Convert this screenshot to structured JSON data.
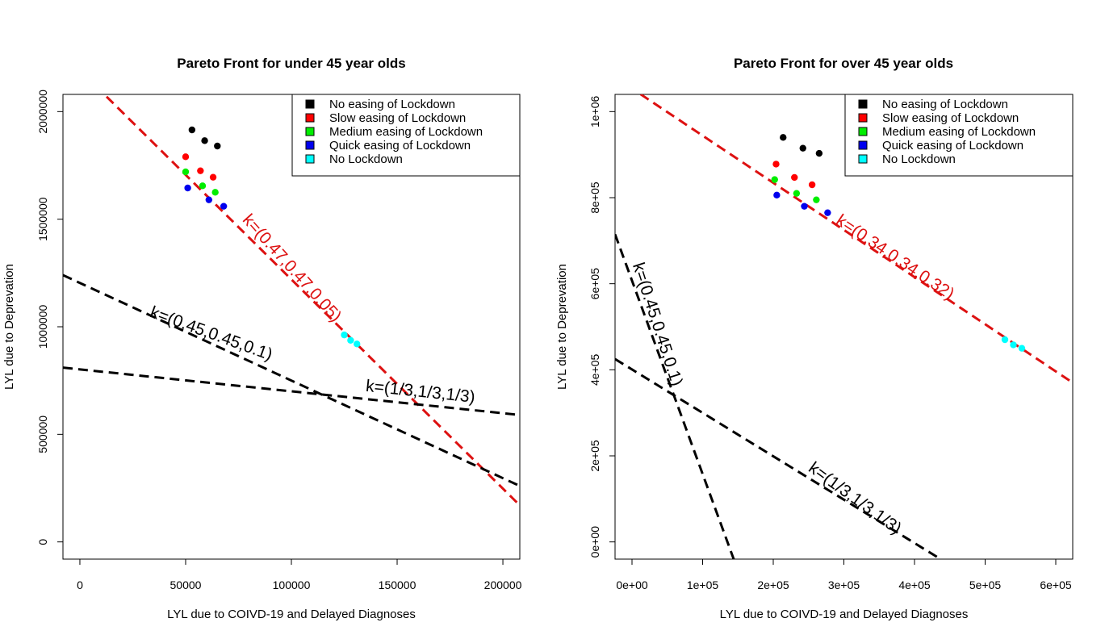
{
  "chart_data": [
    {
      "type": "scatter",
      "title": "Pareto Front for under 45 year olds",
      "xlabel": "LYL due to COIVD-19 and Delayed Diagnoses",
      "ylabel": "LYL due to Deprevation",
      "xlim": [
        -8000,
        208000
      ],
      "ylim": [
        -80000,
        2080000
      ],
      "xticks": [
        {
          "value": 0,
          "label": "0"
        },
        {
          "value": 50000,
          "label": "50000"
        },
        {
          "value": 100000,
          "label": "100000"
        },
        {
          "value": 150000,
          "label": "150000"
        },
        {
          "value": 200000,
          "label": "200000"
        }
      ],
      "yticks": [
        {
          "value": 0,
          "label": "0"
        },
        {
          "value": 500000,
          "label": "500000"
        },
        {
          "value": 1000000,
          "label": "1000000"
        },
        {
          "value": 1500000,
          "label": "1500000"
        },
        {
          "value": 2000000,
          "label": "2000000"
        }
      ],
      "series": [
        {
          "name": "No easing of Lockdown",
          "color": "#000000",
          "points": [
            [
              53000,
              1915000
            ],
            [
              59000,
              1865000
            ],
            [
              65000,
              1840000
            ]
          ]
        },
        {
          "name": "Slow easing of Lockdown",
          "color": "#ff0000",
          "points": [
            [
              50000,
              1790000
            ],
            [
              57000,
              1725000
            ],
            [
              63000,
              1695000
            ]
          ]
        },
        {
          "name": "Medium easing of Lockdown",
          "color": "#00ee00",
          "points": [
            [
              50000,
              1720000
            ],
            [
              58000,
              1655000
            ],
            [
              64000,
              1625000
            ]
          ]
        },
        {
          "name": "Quick easing of Lockdown",
          "color": "#0000ee",
          "points": [
            [
              51000,
              1645000
            ],
            [
              61000,
              1590000
            ],
            [
              68000,
              1560000
            ]
          ]
        },
        {
          "name": "No Lockdown",
          "color": "#00ffff",
          "points": [
            [
              125000,
              962000
            ],
            [
              128000,
              937000
            ],
            [
              131000,
              920000
            ]
          ]
        }
      ],
      "lines": [
        {
          "name": "red",
          "color": "#dd1111",
          "from": [
            -8000,
            2270000
          ],
          "to": [
            208000,
            170000
          ]
        },
        {
          "name": "k045",
          "color": "#000000",
          "from": [
            -8000,
            1240000
          ],
          "to": [
            208000,
            260000
          ]
        },
        {
          "name": "k13",
          "color": "#000000",
          "from": [
            -8000,
            810000
          ],
          "to": [
            208000,
            590000
          ]
        }
      ],
      "annotations": [
        {
          "text": "k=(0.47,0.47,0.05)",
          "color": "#dd1111",
          "at": [
            100000,
            1270000
          ],
          "angle": 48
        },
        {
          "text": "k=(0.45,0.45,0.1)",
          "color": "#000000",
          "at": [
            62000,
            965000
          ],
          "angle": 20
        },
        {
          "text": "k=(1/3,1/3,1/3)",
          "color": "#000000",
          "at": [
            161000,
            695000
          ],
          "angle": 6
        }
      ],
      "legend_position": "top-right"
    },
    {
      "type": "scatter",
      "title": "Pareto Front for over 45 year olds",
      "xlabel": "LYL due to COIVD-19 and Delayed Diagnoses",
      "ylabel": "LYL due to Deprevation",
      "xlim": [
        -24000,
        624000
      ],
      "ylim": [
        -40000,
        1040000
      ],
      "xticks": [
        {
          "value": 0,
          "label": "0e+00"
        },
        {
          "value": 100000,
          "label": "1e+05"
        },
        {
          "value": 200000,
          "label": "2e+05"
        },
        {
          "value": 300000,
          "label": "3e+05"
        },
        {
          "value": 400000,
          "label": "4e+05"
        },
        {
          "value": 500000,
          "label": "5e+05"
        },
        {
          "value": 600000,
          "label": "6e+05"
        }
      ],
      "yticks": [
        {
          "value": 0,
          "label": "0e+00"
        },
        {
          "value": 200000,
          "label": "2e+05"
        },
        {
          "value": 400000,
          "label": "4e+05"
        },
        {
          "value": 600000,
          "label": "6e+05"
        },
        {
          "value": 800000,
          "label": "8e+05"
        },
        {
          "value": 1000000,
          "label": "1e+06"
        }
      ],
      "series": [
        {
          "name": "No easing of Lockdown",
          "color": "#000000",
          "points": [
            [
              214000,
              940000
            ],
            [
              242000,
              915000
            ],
            [
              265000,
              903000
            ]
          ]
        },
        {
          "name": "Slow easing of Lockdown",
          "color": "#ff0000",
          "points": [
            [
              204000,
              878000
            ],
            [
              230000,
              847000
            ],
            [
              255000,
              830000
            ]
          ]
        },
        {
          "name": "Medium easing of Lockdown",
          "color": "#00ee00",
          "points": [
            [
              202000,
              842000
            ],
            [
              233000,
              810000
            ],
            [
              261000,
              795000
            ]
          ]
        },
        {
          "name": "Quick easing of Lockdown",
          "color": "#0000ee",
          "points": [
            [
              205000,
              806000
            ],
            [
              244000,
              780000
            ],
            [
              277000,
              765000
            ]
          ]
        },
        {
          "name": "No Lockdown",
          "color": "#00ffff",
          "points": [
            [
              528000,
              470000
            ],
            [
              540000,
              458000
            ],
            [
              552000,
              450000
            ]
          ]
        }
      ],
      "lines": [
        {
          "name": "red",
          "color": "#dd1111",
          "from": [
            -24000,
            1080000
          ],
          "to": [
            624000,
            370000
          ]
        },
        {
          "name": "k045",
          "color": "#000000",
          "from": [
            -24000,
            715000
          ],
          "to": [
            144000,
            -40000
          ]
        },
        {
          "name": "k13",
          "color": "#000000",
          "from": [
            -24000,
            425000
          ],
          "to": [
            437000,
            -40000
          ]
        }
      ],
      "annotations": [
        {
          "text": "k=(0.34,0.34,0.32)",
          "color": "#dd1111",
          "at": [
            372000,
            660000
          ],
          "angle": 34
        },
        {
          "text": "k=(0.45,0.45,0.1)",
          "color": "#000000",
          "at": [
            35000,
            505000
          ],
          "angle": 72
        },
        {
          "text": "k=(1/3,1/3,1/3)",
          "color": "#000000",
          "at": [
            315000,
            100000
          ],
          "angle": 36
        }
      ],
      "legend_position": "top-right"
    }
  ]
}
